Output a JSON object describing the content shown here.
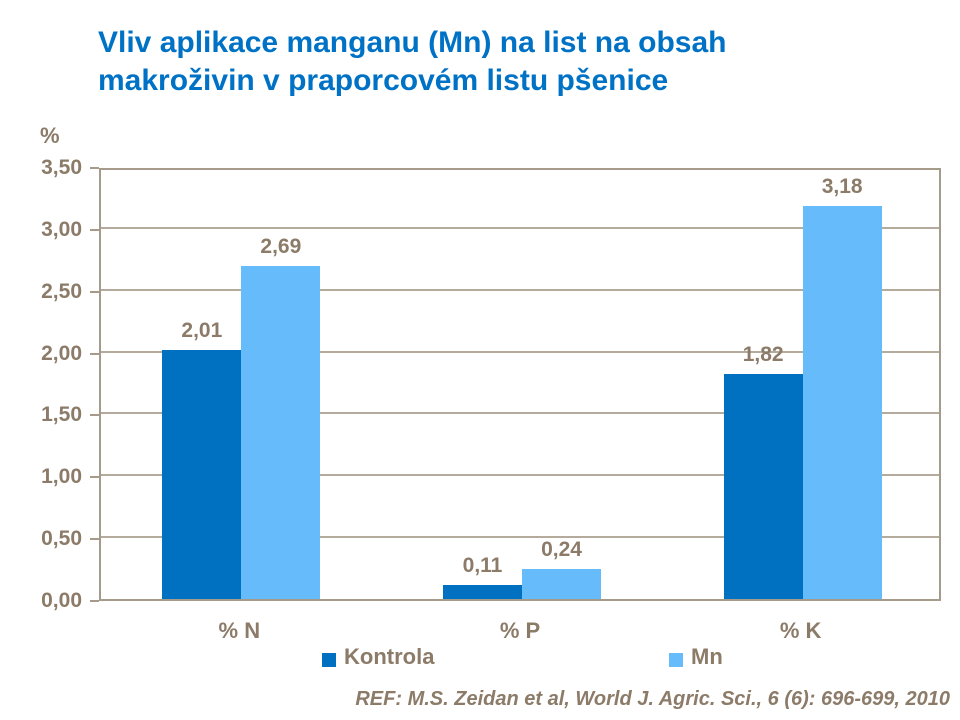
{
  "title": {
    "text": "Vliv aplikace manganu (Mn) na list na obsah makroživin v praporcovém listu pšenice"
  },
  "footer": {
    "ref": "REF: M.S. Zeidan et al, World J. Agric. Sci., 6 (6): 696-699, 2010"
  },
  "colors": {
    "title": "#0072C6",
    "text": "#8B7B68",
    "axis": "#A69B8B",
    "grid": "#B5AB9C",
    "background": "#FFFFFF",
    "kontrola": "#0070C0",
    "mn": "#66BBFB"
  },
  "chart_data": {
    "type": "bar",
    "title": "Vliv aplikace manganu (Mn) na list na obsah makroživin v praporcovém listu pšenice",
    "xlabel": "",
    "ylabel": "%",
    "categories": [
      "% N",
      "% P",
      "% K"
    ],
    "series": [
      {
        "name": "Kontrola",
        "color": "#0070C0",
        "values": [
          2.01,
          0.11,
          1.82
        ],
        "value_labels": [
          "2,01",
          "0,11",
          "1,82"
        ]
      },
      {
        "name": "Mn",
        "color": "#66BBFB",
        "values": [
          2.69,
          0.24,
          3.18
        ],
        "value_labels": [
          "2,69",
          "0,24",
          "3,18"
        ]
      }
    ],
    "ylim": [
      0,
      3.5
    ],
    "ytick_step": 0.5,
    "ytick_labels": [
      "0,00",
      "0,50",
      "1,00",
      "1,50",
      "2,00",
      "2,50",
      "3,00",
      "3,50"
    ],
    "grid": true,
    "legend_position": "bottom"
  }
}
